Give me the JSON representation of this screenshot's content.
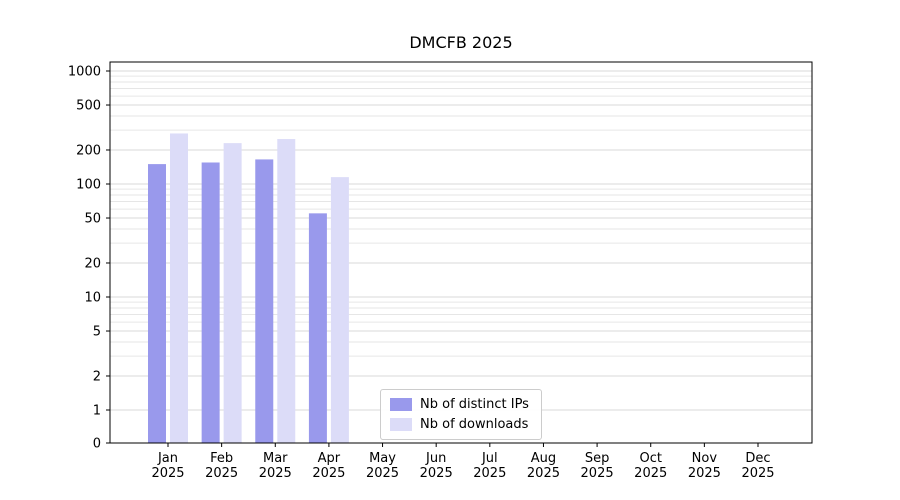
{
  "chart_data": {
    "type": "bar",
    "title": "DMCFB 2025",
    "categories": [
      "Jan",
      "Feb",
      "Mar",
      "Apr",
      "May",
      "Jun",
      "Jul",
      "Aug",
      "Sep",
      "Oct",
      "Nov",
      "Dec"
    ],
    "x_sublabel": "2025",
    "series": [
      {
        "name": "Nb of distinct IPs",
        "color": "#9999ec",
        "values": [
          150,
          155,
          165,
          55,
          0,
          0,
          0,
          0,
          0,
          0,
          0,
          0
        ]
      },
      {
        "name": "Nb of downloads",
        "color": "#dcdcf8",
        "values": [
          280,
          230,
          250,
          115,
          0,
          0,
          0,
          0,
          0,
          0,
          0,
          0
        ]
      }
    ],
    "xlabel": "",
    "ylabel": "",
    "yscale": "symlog",
    "yticks": [
      0,
      1,
      2,
      5,
      10,
      20,
      50,
      100,
      200,
      500,
      1000
    ],
    "ylim": [
      0,
      1400
    ],
    "grid": true,
    "legend_position": "lower center",
    "colors": {
      "grid_major": "#d9d9d9",
      "grid_minor": "#e6e6e6",
      "spine": "#000000",
      "text": "#000000",
      "background": "#ffffff"
    }
  }
}
